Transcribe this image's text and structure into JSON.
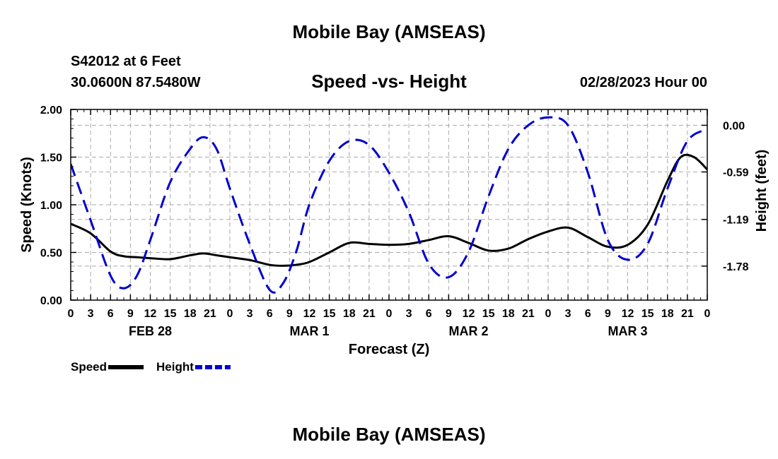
{
  "header": {
    "title": "Mobile Bay (AMSEAS)",
    "station": "S42012 at 6 Feet",
    "coords": "30.0600N  87.5480W",
    "subtitle": "Speed -vs- Height",
    "date": "02/28/2023 Hour 00"
  },
  "footer": {
    "title": "Mobile Bay (AMSEAS)"
  },
  "chart_data": {
    "type": "line",
    "xlabel": "Forecast (Z)",
    "ylabel": "Speed (Knots)",
    "y2label": "Height (feet)",
    "xlim": [
      0,
      96
    ],
    "ylim": [
      0,
      2.0
    ],
    "y2lim": [
      -2.21,
      0.2
    ],
    "x_ticks": [
      0,
      3,
      6,
      9,
      12,
      15,
      18,
      21,
      24,
      27,
      30,
      33,
      36,
      39,
      42,
      45,
      48,
      51,
      54,
      57,
      60,
      63,
      66,
      69,
      72,
      75,
      78,
      81,
      84,
      87,
      90,
      93,
      96
    ],
    "x_tick_labels": [
      "0",
      "3",
      "6",
      "9",
      "12",
      "15",
      "18",
      "21",
      "0",
      "3",
      "6",
      "9",
      "12",
      "15",
      "18",
      "21",
      "0",
      "3",
      "6",
      "9",
      "12",
      "15",
      "18",
      "21",
      "0",
      "3",
      "6",
      "9",
      "12",
      "15",
      "18",
      "21",
      "0"
    ],
    "date_labels": [
      {
        "x": 12,
        "label": "FEB 28"
      },
      {
        "x": 36,
        "label": "MAR 1"
      },
      {
        "x": 60,
        "label": "MAR 2"
      },
      {
        "x": 84,
        "label": "MAR 3"
      }
    ],
    "y_ticks": [
      0.0,
      0.5,
      1.0,
      1.5,
      2.0
    ],
    "y_tick_labels": [
      "0.00",
      "0.50",
      "1.00",
      "1.50",
      "2.00"
    ],
    "y2_ticks": [
      0.0,
      -0.59,
      -1.19,
      -1.78
    ],
    "y2_tick_labels": [
      "0.00",
      "-0.59",
      "-1.19",
      "-1.78"
    ],
    "grid": true,
    "legend_position": "bottom-left",
    "series": [
      {
        "name": "Speed",
        "axis": "left",
        "color": "#000000",
        "style": "solid",
        "x": [
          0,
          3,
          6,
          8,
          10,
          12,
          15,
          18,
          20,
          22,
          24,
          27,
          30,
          32,
          34,
          36,
          39,
          42,
          45,
          48,
          51,
          54,
          57,
          60,
          63,
          66,
          69,
          72,
          75,
          78,
          81,
          84,
          87,
          90,
          92,
          94,
          96
        ],
        "values": [
          0.8,
          0.7,
          0.51,
          0.46,
          0.45,
          0.44,
          0.43,
          0.47,
          0.49,
          0.47,
          0.45,
          0.42,
          0.37,
          0.36,
          0.37,
          0.4,
          0.5,
          0.6,
          0.59,
          0.58,
          0.59,
          0.63,
          0.67,
          0.6,
          0.52,
          0.54,
          0.64,
          0.72,
          0.76,
          0.66,
          0.56,
          0.58,
          0.79,
          1.25,
          1.5,
          1.5,
          1.37
        ]
      },
      {
        "name": "Height",
        "axis": "right",
        "color": "#0000cc",
        "style": "dashed",
        "x": [
          0,
          3,
          6,
          8,
          10,
          12,
          15,
          18,
          20,
          22,
          24,
          27,
          30,
          32,
          34,
          36,
          39,
          42,
          45,
          48,
          51,
          54,
          57,
          60,
          63,
          66,
          69,
          72,
          75,
          78,
          81,
          84,
          87,
          90,
          93,
          96
        ],
        "values": [
          -0.49,
          -1.2,
          -1.9,
          -2.06,
          -1.9,
          -1.45,
          -0.72,
          -0.3,
          -0.15,
          -0.3,
          -0.8,
          -1.5,
          -2.08,
          -2.0,
          -1.6,
          -1.0,
          -0.45,
          -0.2,
          -0.25,
          -0.6,
          -1.1,
          -1.75,
          -1.92,
          -1.6,
          -0.9,
          -0.3,
          0.0,
          0.1,
          0.0,
          -0.6,
          -1.45,
          -1.7,
          -1.5,
          -0.8,
          -0.2,
          -0.05
        ]
      }
    ]
  },
  "legend": [
    {
      "label": "Speed",
      "color": "#000000",
      "style": "solid"
    },
    {
      "label": "Height",
      "color": "#0000cc",
      "style": "dashed"
    }
  ]
}
